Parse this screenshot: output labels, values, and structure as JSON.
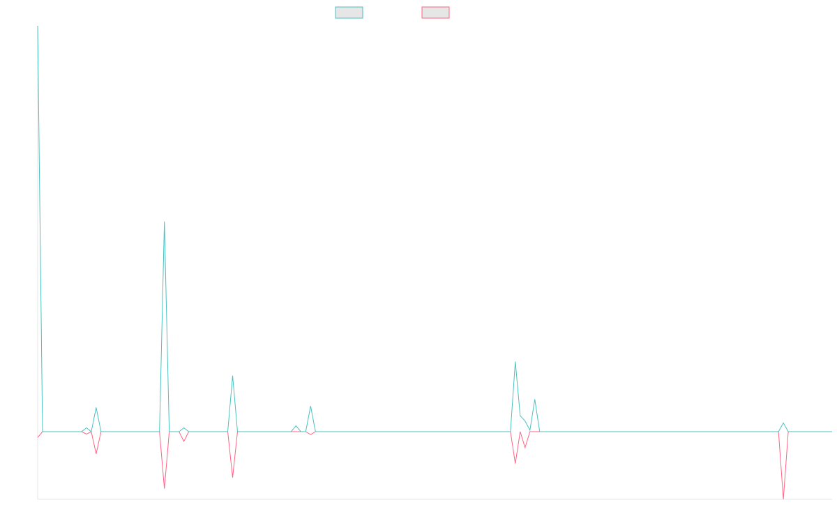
{
  "chart_data": {
    "type": "line",
    "title": "",
    "xlabel": "",
    "ylabel": "",
    "legend": "top-center",
    "grid": false,
    "x_range": [
      0,
      163
    ],
    "ylim": [
      -1.4,
      8.4
    ],
    "series": [
      {
        "color": "#4bc0c0",
        "fill": "#e6e6e6",
        "points": [
          [
            0,
            8.4
          ],
          [
            1,
            0
          ],
          [
            5,
            0
          ],
          [
            6,
            0
          ],
          [
            9,
            0
          ],
          [
            10,
            0.08
          ],
          [
            11,
            0
          ],
          [
            12,
            0.5
          ],
          [
            13,
            0
          ],
          [
            25,
            0
          ],
          [
            26,
            4.35
          ],
          [
            27,
            0
          ],
          [
            29,
            0
          ],
          [
            30,
            0.08
          ],
          [
            31,
            0
          ],
          [
            39,
            0
          ],
          [
            40,
            1.16
          ],
          [
            41,
            0
          ],
          [
            52,
            0
          ],
          [
            53,
            0.12
          ],
          [
            54,
            0
          ],
          [
            55,
            0
          ],
          [
            56,
            0.53
          ],
          [
            57,
            0
          ],
          [
            97,
            0
          ],
          [
            98,
            1.45
          ],
          [
            99,
            0.33
          ],
          [
            100,
            0.22
          ],
          [
            101,
            0.03
          ],
          [
            102,
            0.67
          ],
          [
            103,
            0
          ],
          [
            131,
            0
          ],
          [
            132,
            0
          ],
          [
            152,
            0
          ],
          [
            153,
            0.18
          ],
          [
            154,
            0
          ],
          [
            163,
            0
          ]
        ]
      },
      {
        "color": "#ff6384",
        "fill": "#e6e6e6",
        "points": [
          [
            0,
            -0.12
          ],
          [
            1,
            0
          ],
          [
            5,
            0
          ],
          [
            6,
            0
          ],
          [
            9,
            0
          ],
          [
            10,
            -0.05
          ],
          [
            11,
            0
          ],
          [
            12,
            -0.46
          ],
          [
            13,
            0
          ],
          [
            25,
            0
          ],
          [
            26,
            -1.18
          ],
          [
            27,
            0
          ],
          [
            29,
            0
          ],
          [
            30,
            -0.2
          ],
          [
            31,
            0
          ],
          [
            39,
            0
          ],
          [
            40,
            -0.95
          ],
          [
            41,
            0
          ],
          [
            52,
            0
          ],
          [
            53,
            0
          ],
          [
            54,
            0
          ],
          [
            55,
            0
          ],
          [
            56,
            -0.06
          ],
          [
            57,
            0
          ],
          [
            97,
            0
          ],
          [
            98,
            -0.66
          ],
          [
            99,
            0
          ],
          [
            100,
            -0.33
          ],
          [
            101,
            0
          ],
          [
            102,
            0
          ],
          [
            103,
            0
          ],
          [
            131,
            0
          ],
          [
            132,
            0
          ],
          [
            152,
            0
          ],
          [
            153,
            -1.4
          ],
          [
            154,
            0
          ],
          [
            163,
            0
          ]
        ]
      }
    ]
  }
}
